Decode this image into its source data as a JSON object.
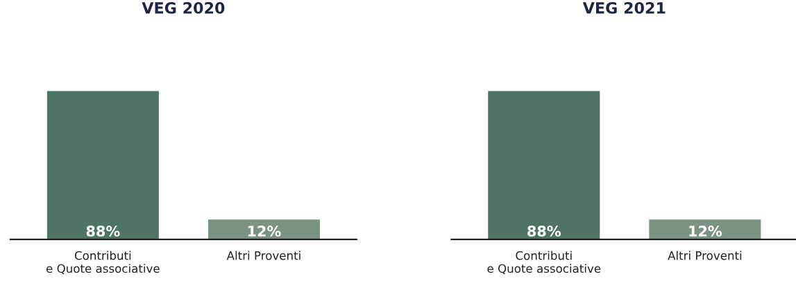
{
  "chart_data": [
    {
      "type": "bar",
      "title": "VEG 2020",
      "categories": [
        "Contributi\ne Quote associative",
        "Altri Proventi"
      ],
      "values": [
        88,
        12
      ],
      "colors": [
        "#4e7563",
        "#7a9382"
      ],
      "value_labels": [
        "88%",
        "12%"
      ]
    },
    {
      "type": "bar",
      "title": "VEG 2021",
      "categories": [
        "Contributi\ne Quote associative",
        "Altri Proventi"
      ],
      "values": [
        88,
        12
      ],
      "colors": [
        "#4e7563",
        "#7a9382"
      ],
      "value_labels": [
        "88%",
        "12%"
      ]
    }
  ]
}
